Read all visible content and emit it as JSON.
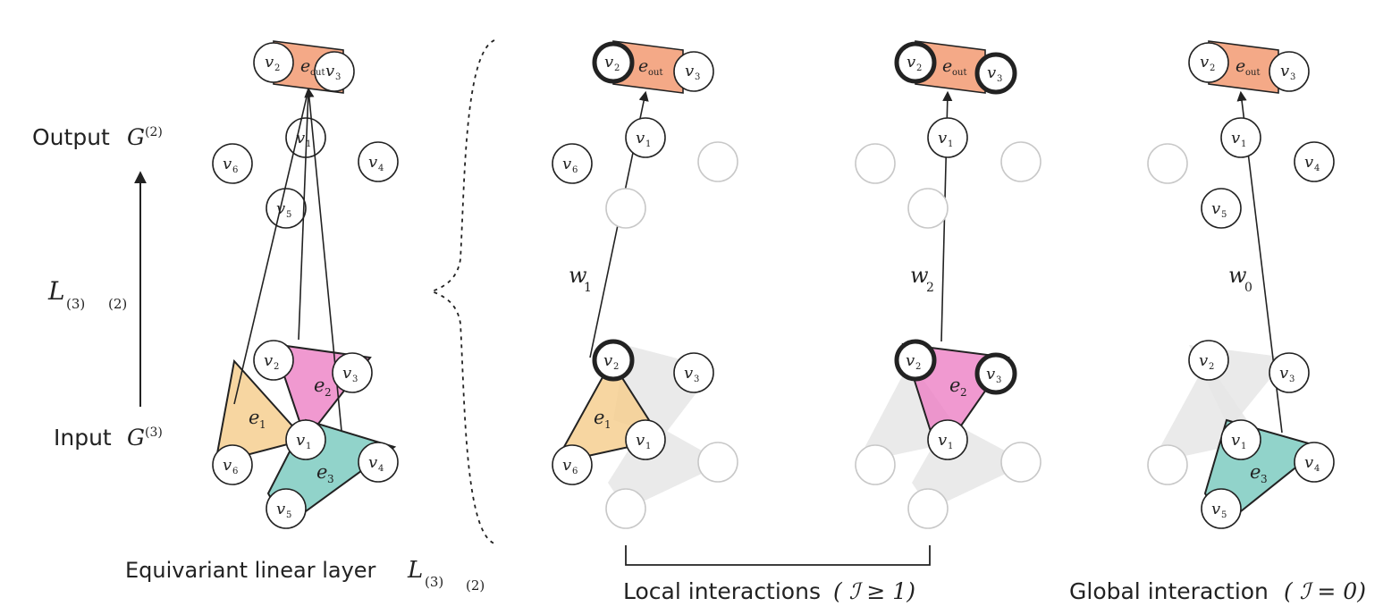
{
  "colors": {
    "edge_out": "#f4a987",
    "e1": "#f6cf90",
    "e2": "#ec7fc4",
    "e3": "#7ecbc1",
    "ghost": "#e6e6e6",
    "ghost_stroke": "#c8c8c8",
    "ink": "#222222"
  },
  "labels": {
    "output_word": "Output",
    "output_symbol": "G",
    "output_exp": "(2)",
    "input_word": "Input",
    "input_symbol": "G",
    "input_exp": "(3)",
    "layer_symbol": "L",
    "layer_sub_left": "(3)",
    "layer_sub_right": "(2)",
    "caption_left": "Equivariant linear layer",
    "caption_left_symbol": "L",
    "caption_left_sub_left": "(3)",
    "caption_left_sub_right": "(2)",
    "caption_local": "Local interactions",
    "caption_local_math": "( ℐ ≥ 1)",
    "caption_global": "Global interaction",
    "caption_global_math": "( ℐ = 0)"
  },
  "nodes": {
    "v1": "v",
    "v1_sub": "1",
    "v2": "v",
    "v2_sub": "2",
    "v3": "v",
    "v3_sub": "3",
    "v4": "v",
    "v4_sub": "4",
    "v5": "v",
    "v5_sub": "5",
    "v6": "v",
    "v6_sub": "6"
  },
  "edges": {
    "e_out": "e",
    "e_out_sub": "out",
    "e1": "e",
    "e1_sub": "1",
    "e2": "e",
    "e2_sub": "2",
    "e3": "e",
    "e3_sub": "3"
  },
  "weights": {
    "w1": "w",
    "w1_sub": "1",
    "w2": "w",
    "w2_sub": "2",
    "w0": "w",
    "w0_sub": "0"
  }
}
